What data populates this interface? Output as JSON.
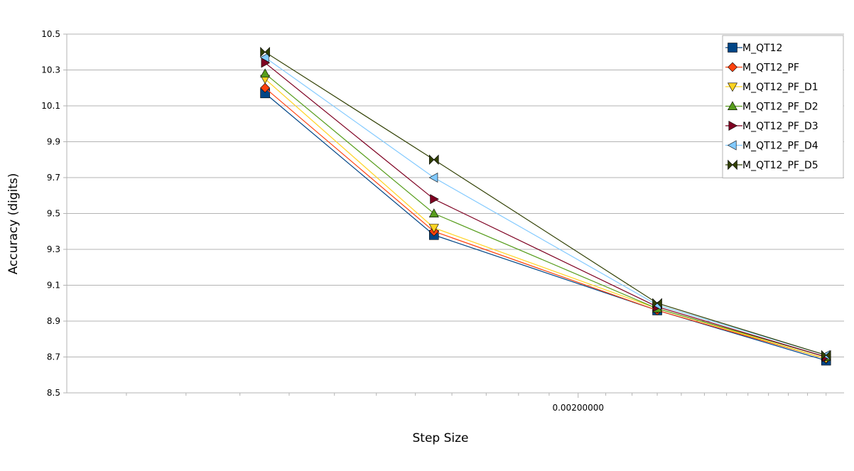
{
  "chart_data": {
    "type": "line",
    "xlabel": "Step Size",
    "ylabel": "Accuracy (digits)",
    "x_scale": "log",
    "x_tick_labels": [
      {
        "value": 0.002,
        "label": "0.00200000"
      }
    ],
    "x": [
      0.00115,
      0.00155,
      0.0023,
      0.0031
    ],
    "xlim": [
      0.00081,
      0.0032
    ],
    "ylim": [
      8.5,
      10.5
    ],
    "y_ticks": [
      "8.5",
      "8.7",
      "8.9",
      "9.1",
      "9.3",
      "9.5",
      "9.7",
      "9.9",
      "10.1",
      "10.3",
      "10.5"
    ],
    "grid": "horizontal",
    "legend_position": "top-right",
    "series": [
      {
        "name": "M_QT12",
        "color": "#004586",
        "marker": "square",
        "values": [
          10.17,
          9.38,
          8.96,
          8.68
        ]
      },
      {
        "name": "M_QT12_PF",
        "color": "#ff420e",
        "marker": "diamond",
        "values": [
          10.2,
          9.4,
          8.96,
          8.69
        ]
      },
      {
        "name": "M_QT12_PF_D1",
        "color": "#ffd320",
        "marker": "triangle-down",
        "values": [
          10.25,
          9.42,
          8.97,
          8.69
        ]
      },
      {
        "name": "M_QT12_PF_D2",
        "color": "#579d1c",
        "marker": "triangle-up",
        "values": [
          10.28,
          9.5,
          8.97,
          8.7
        ]
      },
      {
        "name": "M_QT12_PF_D3",
        "color": "#7e0021",
        "marker": "triangle-right",
        "values": [
          10.34,
          9.58,
          8.98,
          8.7
        ]
      },
      {
        "name": "M_QT12_PF_D4",
        "color": "#83caff",
        "marker": "triangle-left",
        "values": [
          10.37,
          9.7,
          8.99,
          8.71
        ]
      },
      {
        "name": "M_QT12_PF_D5",
        "color": "#314004",
        "marker": "bowtie",
        "values": [
          10.4,
          9.8,
          9.0,
          8.71
        ]
      }
    ]
  }
}
